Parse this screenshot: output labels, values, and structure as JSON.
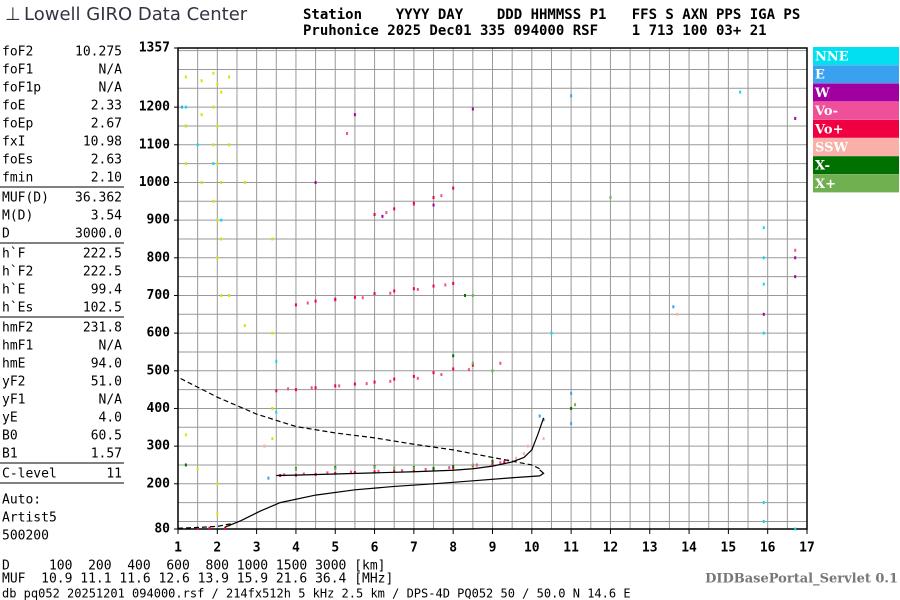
{
  "header": {
    "logo": "Lowell GIRO Data Center",
    "line1": "Station    YYYY DAY    DDD HHMMSS P1   FFS S AXN PPS IGA PS",
    "line2": "Pruhonice 2025 Dec01 335 094000 RSF    1 713 100 03+ 21"
  },
  "parameters": [
    [
      {
        "name": "foF2",
        "value": "10.275"
      },
      {
        "name": "foF1",
        "value": "N/A"
      },
      {
        "name": "foF1p",
        "value": "N/A"
      },
      {
        "name": "foE",
        "value": "2.33"
      },
      {
        "name": "foEp",
        "value": "2.67"
      },
      {
        "name": "fxI",
        "value": "10.98"
      },
      {
        "name": "foEs",
        "value": "2.63"
      },
      {
        "name": "fmin",
        "value": "2.10"
      }
    ],
    [
      {
        "name": "MUF(D)",
        "value": "36.362"
      },
      {
        "name": "M(D)",
        "value": "3.54"
      },
      {
        "name": "D",
        "value": "3000.0"
      }
    ],
    [
      {
        "name": "h`F",
        "value": "222.5"
      },
      {
        "name": "h`F2",
        "value": "222.5"
      },
      {
        "name": "h`E",
        "value": "99.4"
      },
      {
        "name": "h`Es",
        "value": "102.5"
      }
    ],
    [
      {
        "name": "hmF2",
        "value": "231.8"
      },
      {
        "name": "hmF1",
        "value": "N/A"
      },
      {
        "name": "hmE",
        "value": "94.0"
      },
      {
        "name": "yF2",
        "value": "51.0"
      },
      {
        "name": "yF1",
        "value": "N/A"
      },
      {
        "name": "yE",
        "value": "4.0"
      },
      {
        "name": "B0",
        "value": "60.5"
      },
      {
        "name": "B1",
        "value": "1.57"
      }
    ],
    [
      {
        "name": "C-level",
        "value": "11"
      }
    ]
  ],
  "autoscaling": [
    "Auto:",
    "Artist5",
    "500200"
  ],
  "footer": {
    "d_line": "D     100  200  400  600  800 1000 1500 3000 [km]",
    "muf_line": "MUF  10.9 11.1 11.6 12.6 13.9 15.9 21.6 36.4 [MHz]",
    "file": "db pq052 20251201 094000.rsf / 214fx512h 5 kHz 2.5 km / DPS-4D PQ052 50 / 50.0 N 14.6 E",
    "servlet": "DIDBasePortal_Servlet 0.1"
  },
  "chart_data": {
    "type": "scatter",
    "xlim": [
      1,
      17
    ],
    "xticks": [
      1,
      2,
      3,
      4,
      5,
      6,
      7,
      8,
      9,
      10,
      11,
      12,
      13,
      14,
      15,
      16,
      17
    ],
    "ylim": [
      80,
      1357
    ],
    "yticks": [
      80,
      200,
      300,
      400,
      500,
      600,
      700,
      800,
      900,
      1000,
      1100,
      1200,
      1357
    ],
    "xgrid": [
      1.5,
      2.5,
      3.5,
      4.5,
      5.5,
      6.5,
      7.5,
      8.5,
      9.5,
      10.5,
      11.5,
      12.5,
      13.5,
      14.5,
      15.5,
      16.5,
      2,
      3,
      4,
      5,
      6,
      7,
      8,
      9,
      10,
      11,
      12,
      13,
      14,
      15,
      16
    ],
    "ygrid": [
      100,
      150,
      200,
      250,
      300,
      350,
      400,
      450,
      500,
      550,
      600,
      650,
      700,
      750,
      800,
      850,
      900,
      950,
      1000,
      1050,
      1100,
      1150,
      1200,
      1250,
      1300,
      1350
    ],
    "series": [
      {
        "name": "NNE",
        "color": "#00e0f0",
        "x": [
          1.2,
          1.2,
          1.5,
          1.9,
          2.1,
          15.9,
          15.9,
          15.9,
          15.9,
          15.9,
          15.9,
          3.5,
          3.5,
          10.5,
          16.7,
          15.3
        ],
        "values": [
          1200,
          1150,
          1100,
          1050,
          900,
          880,
          800,
          730,
          600,
          150,
          100,
          525,
          390,
          600,
          80,
          1240
        ]
      },
      {
        "name": "E",
        "color": "#3aa0f0",
        "x": [
          11,
          10.2,
          11,
          11,
          13.6,
          1.1,
          3.3,
          10.3
        ],
        "values": [
          1230,
          380,
          440,
          360,
          670,
          1200,
          215,
          370
        ]
      },
      {
        "name": "W",
        "color": "#a000a0",
        "x": [
          5.5,
          16.7,
          16.7,
          16.7,
          15.9,
          8.5,
          4.5,
          6.2,
          7.5
        ],
        "values": [
          1180,
          1170,
          800,
          750,
          650,
          1195,
          1000,
          910,
          940
        ]
      },
      {
        "name": "Vo-",
        "color": "#f0509a",
        "x": [
          3.7,
          4.2,
          4.8,
          5.4,
          6.1,
          6.7,
          7.3,
          7.9,
          8.6,
          9.2,
          3.8,
          4.4,
          5.1,
          5.8,
          6.4,
          7.1,
          7.7,
          8.4,
          9.2,
          4.3,
          5.0,
          5.7,
          6.4,
          7.1,
          7.8,
          6.3,
          7.0,
          7.7,
          5.3,
          16.7
        ],
        "values": [
          224,
          226,
          229,
          231,
          233,
          235,
          238,
          243,
          250,
          256,
          452,
          455,
          460,
          466,
          472,
          480,
          490,
          503,
          520,
          680,
          688,
          694,
          706,
          716,
          728,
          920,
          942,
          965,
          1130,
          820
        ]
      },
      {
        "name": "Vo+",
        "color": "#f00040",
        "x": [
          3.6,
          4,
          4.5,
          5,
          5.5,
          6,
          6.5,
          7,
          7.5,
          8,
          8.5,
          9,
          9.3,
          3.5,
          4,
          4.5,
          5,
          5.5,
          6,
          6.5,
          7,
          7.5,
          8,
          8.5,
          4,
          4.5,
          5,
          5.5,
          6,
          6.5,
          7,
          7.5,
          8,
          6,
          6.5,
          7,
          7.5,
          8,
          1.5,
          1.8,
          2.2
        ],
        "values": [
          222,
          223,
          225,
          228,
          230,
          232,
          233,
          235,
          238,
          242,
          248,
          253,
          258,
          447,
          450,
          455,
          460,
          465,
          470,
          478,
          485,
          495,
          505,
          515,
          675,
          685,
          690,
          695,
          705,
          712,
          718,
          725,
          732,
          915,
          930,
          945,
          960,
          985,
          82,
          82,
          82
        ]
      },
      {
        "name": "SSW",
        "color": "#f8b0a8",
        "x": [
          9.8,
          10,
          10.3,
          13.7,
          3.2,
          9.6,
          9.9,
          9.4
        ],
        "values": [
          280,
          290,
          320,
          650,
          300,
          268,
          300,
          262
        ]
      },
      {
        "name": "X-",
        "color": "#007000",
        "x": [
          4,
          5,
          6,
          7,
          8,
          9,
          8,
          8.3,
          11,
          1.2,
          7.5
        ],
        "values": [
          240,
          243,
          245,
          243,
          246,
          260,
          540,
          700,
          400,
          250,
          241
        ]
      },
      {
        "name": "X+",
        "color": "#70b050",
        "x": [
          4,
          5,
          6,
          7,
          8.5,
          9,
          8.5,
          8.5,
          11.1,
          12,
          6.5
        ],
        "values": [
          238,
          240,
          243,
          241,
          250,
          500,
          520,
          700,
          410,
          960,
          242
        ]
      },
      {
        "color": "#e0e000",
        "x": [
          1.2,
          1.2,
          1.2,
          1.6,
          1.6,
          1.6,
          1.9,
          1.9,
          1.9,
          1.9,
          2.0,
          2.0,
          2.0,
          2.0,
          2.0,
          2.1,
          2.1,
          2.1,
          2.1,
          2.3,
          2.3,
          2.3,
          2.7,
          2.7,
          3.4,
          3.4,
          3.4,
          3.4,
          1.2,
          1.5,
          2.0,
          2.0,
          2.3
        ],
        "values": [
          1280,
          1150,
          1050,
          1270,
          1180,
          1000,
          1290,
          1200,
          1100,
          950,
          1260,
          1150,
          1050,
          900,
          800,
          1240,
          1000,
          850,
          700,
          1280,
          1100,
          700,
          1000,
          620,
          850,
          600,
          400,
          320,
          330,
          240,
          200,
          120,
          90
        ]
      }
    ],
    "curves": [
      {
        "style": "solid",
        "x": [
          3.5,
          4,
          5,
          6,
          7,
          8,
          8.5,
          9,
          9.5,
          9.8,
          10,
          10.15,
          10.3
        ],
        "values": [
          222,
          223,
          226,
          229,
          232,
          236,
          240,
          247,
          258,
          270,
          290,
          330,
          375
        ]
      },
      {
        "style": "solid",
        "x": [
          2.2,
          2.6,
          3.1,
          3.6,
          4.5,
          5.5,
          6.5,
          7.5,
          8.5,
          9.5,
          10.2,
          10.3,
          10.2
        ],
        "values": [
          85,
          102,
          128,
          150,
          170,
          184,
          193,
          200,
          208,
          216,
          221,
          228,
          237
        ]
      },
      {
        "style": "dashed",
        "x": [
          10.2,
          10,
          9,
          8,
          7,
          6,
          5,
          4,
          3,
          2,
          1
        ],
        "values": [
          240,
          250,
          270,
          290,
          305,
          322,
          335,
          352,
          385,
          430,
          483
        ]
      },
      {
        "style": "dashed",
        "x": [
          1,
          1.5,
          2.0,
          2.4
        ],
        "values": [
          82,
          84,
          87,
          95
        ]
      }
    ]
  }
}
